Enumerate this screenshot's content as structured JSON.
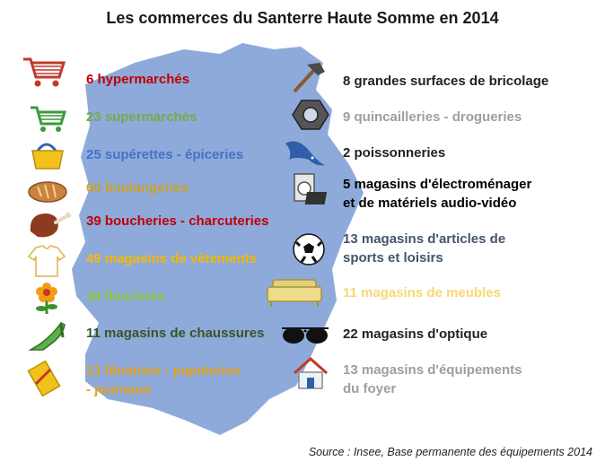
{
  "title": "Les commerces du Santerre Haute Somme en 2014",
  "source": "Source : Insee, Base permanente des équipements 2014",
  "colors": {
    "map_fill": "#8eaadb",
    "dark_red": "#c00000",
    "green": "#70ad47",
    "blue": "#4472c4",
    "gold": "#c9a227",
    "orange": "#f5b800",
    "light_green": "#8ac53e",
    "dark_green": "#375623",
    "amber": "#e3a21a",
    "dark": "#222222",
    "grey": "#9e9e9e",
    "slate": "#44546a",
    "yellow_light": "#f7d873",
    "black": "#000000"
  },
  "left_items": [
    {
      "icon": "shopping-cart-icon",
      "text": "6 hypermarchés"
    },
    {
      "icon": "small-cart-icon",
      "text": "23 supermarchés"
    },
    {
      "icon": "basket-icon",
      "text": "25 supérettes - épiceries"
    },
    {
      "icon": "bread-icon",
      "text": "60 boulangeries"
    },
    {
      "icon": "ham-icon",
      "text": "39 boucheries - charcuteries"
    },
    {
      "icon": "clothes-icon",
      "text": "49 magasins de vêtements"
    },
    {
      "icon": "flower-icon",
      "text": "38 fleuristes"
    },
    {
      "icon": "shoe-icon",
      "text": "11 magasins de chaussures"
    },
    {
      "icon": "press-icon",
      "text_line1": "13 librairies - papeteries",
      "text_line2": "- journaux"
    }
  ],
  "right_items": [
    {
      "icon": "hammer-icon",
      "text": "8 grandes surfaces de bricolage"
    },
    {
      "icon": "nut-icon",
      "text": "9 quincailleries - drogueries"
    },
    {
      "icon": "fish-icon",
      "text": "2 poissonneries"
    },
    {
      "icon": "appliance-icon",
      "text_line1": "5 magasins d'électroménager",
      "text_line2": "et de matériels audio-vidéo"
    },
    {
      "icon": "soccer-ball-icon",
      "text_line1": "13 magasins d'articles de",
      "text_line2": "sports et loisirs"
    },
    {
      "icon": "sofa-icon",
      "text": "11 magasins de meubles"
    },
    {
      "icon": "glasses-icon",
      "text": "22 magasins d'optique"
    },
    {
      "icon": "house-icon",
      "text_line1": "13 magasins d'équipements",
      "text_line2": "du foyer"
    }
  ]
}
